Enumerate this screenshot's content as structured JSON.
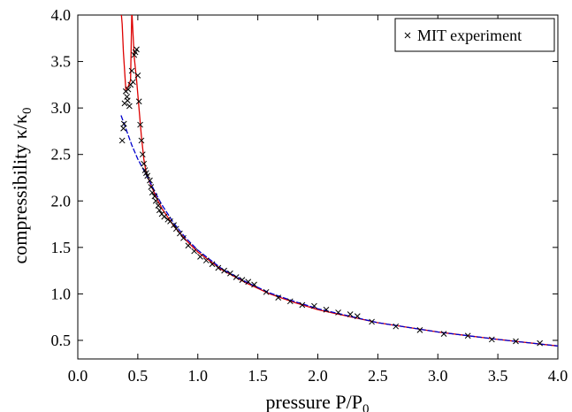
{
  "chart_data": {
    "type": "scatter",
    "xlabel": "pressure P/P",
    "xlabel_sub": "0",
    "ylabel": "compressibility κ/κ",
    "ylabel_sub": "0",
    "xlim": [
      0.0,
      4.0
    ],
    "ylim": [
      0.3,
      4.0
    ],
    "xticks": [
      "0.0",
      "0.5",
      "1.0",
      "1.5",
      "2.0",
      "2.5",
      "3.0",
      "3.5",
      "4.0"
    ],
    "yticks": [
      "0.5",
      "1.0",
      "1.5",
      "2.0",
      "2.5",
      "3.0",
      "3.5",
      "4.0"
    ],
    "legend_position": "top-right",
    "grid": false,
    "colors": {
      "red_curve": "#dd0000",
      "blue_curve": "#0000cc",
      "markers": "#000000"
    },
    "series": [
      {
        "name": "MIT experiment",
        "kind": "markers",
        "marker": "x",
        "x": [
          0.37,
          0.38,
          0.385,
          0.39,
          0.4,
          0.41,
          0.415,
          0.42,
          0.43,
          0.44,
          0.45,
          0.46,
          0.47,
          0.48,
          0.49,
          0.5,
          0.51,
          0.52,
          0.53,
          0.54,
          0.55,
          0.56,
          0.57,
          0.58,
          0.6,
          0.61,
          0.62,
          0.64,
          0.65,
          0.67,
          0.68,
          0.7,
          0.72,
          0.75,
          0.77,
          0.8,
          0.82,
          0.85,
          0.88,
          0.92,
          0.97,
          1.02,
          1.07,
          1.12,
          1.17,
          1.22,
          1.27,
          1.32,
          1.37,
          1.42,
          1.47,
          1.57,
          1.67,
          1.77,
          1.87,
          1.97,
          2.07,
          2.17,
          2.27,
          2.33,
          2.45,
          2.65,
          2.85,
          3.05,
          3.25,
          3.45,
          3.65,
          3.85
        ],
        "y": [
          2.65,
          2.78,
          2.83,
          3.05,
          3.18,
          3.12,
          3.08,
          3.2,
          3.02,
          3.25,
          3.4,
          3.28,
          3.57,
          3.6,
          3.63,
          3.35,
          3.07,
          2.82,
          2.65,
          2.5,
          2.4,
          2.33,
          2.3,
          2.27,
          2.22,
          2.15,
          2.09,
          2.05,
          2.0,
          1.95,
          1.9,
          1.86,
          1.83,
          1.8,
          1.78,
          1.74,
          1.7,
          1.65,
          1.6,
          1.52,
          1.46,
          1.4,
          1.36,
          1.32,
          1.28,
          1.25,
          1.22,
          1.18,
          1.15,
          1.13,
          1.1,
          1.02,
          0.96,
          0.92,
          0.88,
          0.87,
          0.83,
          0.8,
          0.78,
          0.76,
          0.7,
          0.65,
          0.61,
          0.57,
          0.55,
          0.51,
          0.49,
          0.47
        ]
      },
      {
        "kind": "line",
        "color": "#dd0000",
        "x": [
          0.36,
          0.37,
          0.38,
          0.4,
          0.42,
          0.44,
          0.45,
          0.47,
          0.49,
          0.51,
          0.53,
          0.55,
          0.57,
          0.6,
          0.65,
          0.7,
          0.8,
          0.9,
          1.0,
          1.2,
          1.4,
          1.6,
          1.8,
          2.0,
          2.5,
          3.0,
          3.5,
          4.0
        ],
        "y": [
          4.05,
          3.9,
          3.6,
          3.2,
          3.23,
          3.3,
          4.05,
          3.55,
          3.3,
          3.0,
          2.7,
          2.45,
          2.3,
          2.2,
          2.05,
          1.92,
          1.73,
          1.58,
          1.45,
          1.26,
          1.12,
          1.0,
          0.91,
          0.83,
          0.69,
          0.59,
          0.51,
          0.44
        ]
      },
      {
        "kind": "line",
        "color": "#0000cc",
        "x": [
          0.36,
          0.4,
          0.45,
          0.5,
          0.55,
          0.6,
          0.65,
          0.7,
          0.8,
          0.9,
          1.0,
          1.2,
          1.4,
          1.6,
          1.8,
          2.0,
          2.5,
          3.0,
          3.5,
          4.0
        ],
        "y": [
          2.92,
          2.78,
          2.6,
          2.45,
          2.33,
          2.21,
          2.08,
          1.96,
          1.76,
          1.6,
          1.47,
          1.27,
          1.13,
          1.01,
          0.92,
          0.84,
          0.69,
          0.59,
          0.51,
          0.44
        ]
      }
    ]
  }
}
